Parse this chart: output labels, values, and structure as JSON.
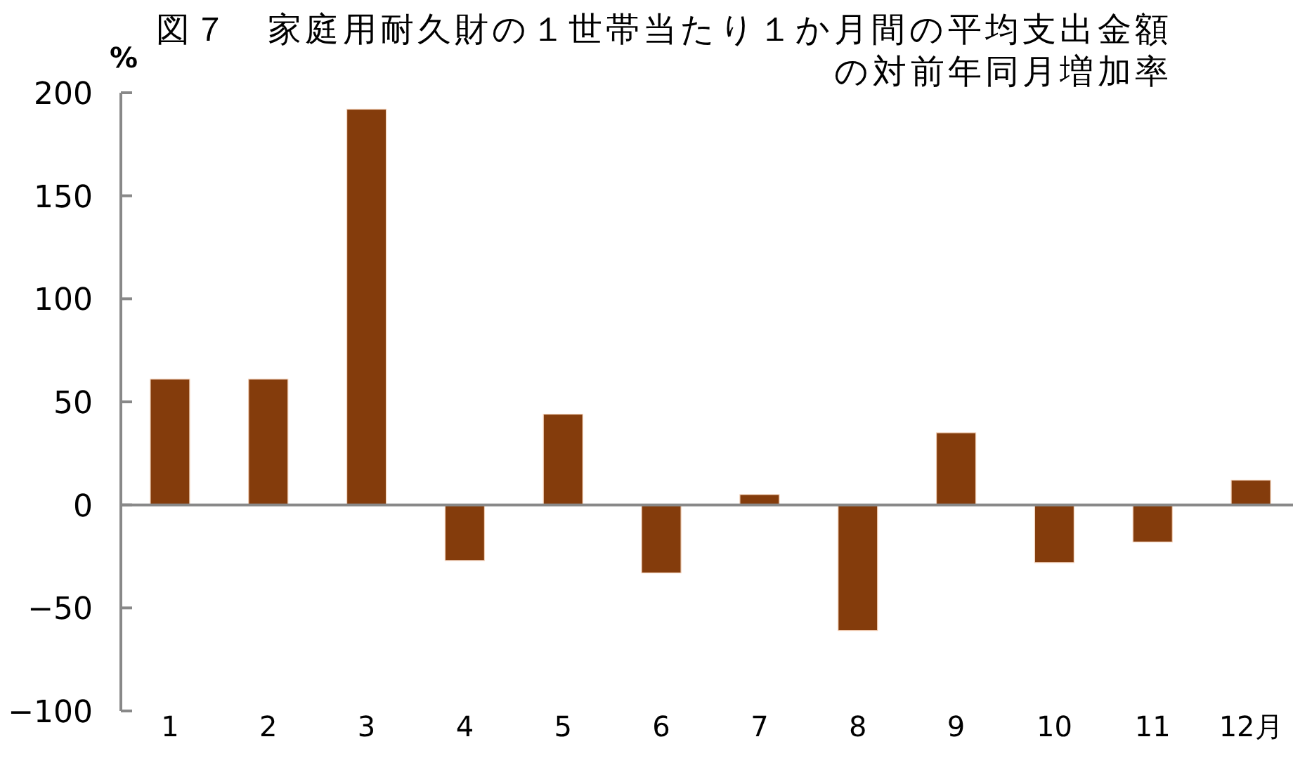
{
  "chart_data": {
    "type": "bar",
    "title": "図７　家庭用耐久財の１世帯当たり１か月間の平均支出金額の対前年同月増加率",
    "ylabel": "%",
    "categories": [
      "1",
      "2",
      "3",
      "4",
      "5",
      "6",
      "7",
      "8",
      "9",
      "10",
      "11",
      "12月"
    ],
    "values": [
      61,
      61,
      192,
      -27,
      44,
      -33,
      5,
      -61,
      35,
      -28,
      -18,
      12
    ],
    "color": "#843c0c",
    "ylim": [
      -100,
      200
    ],
    "yticks": [
      -100,
      -50,
      0,
      50,
      100,
      150,
      200
    ]
  }
}
